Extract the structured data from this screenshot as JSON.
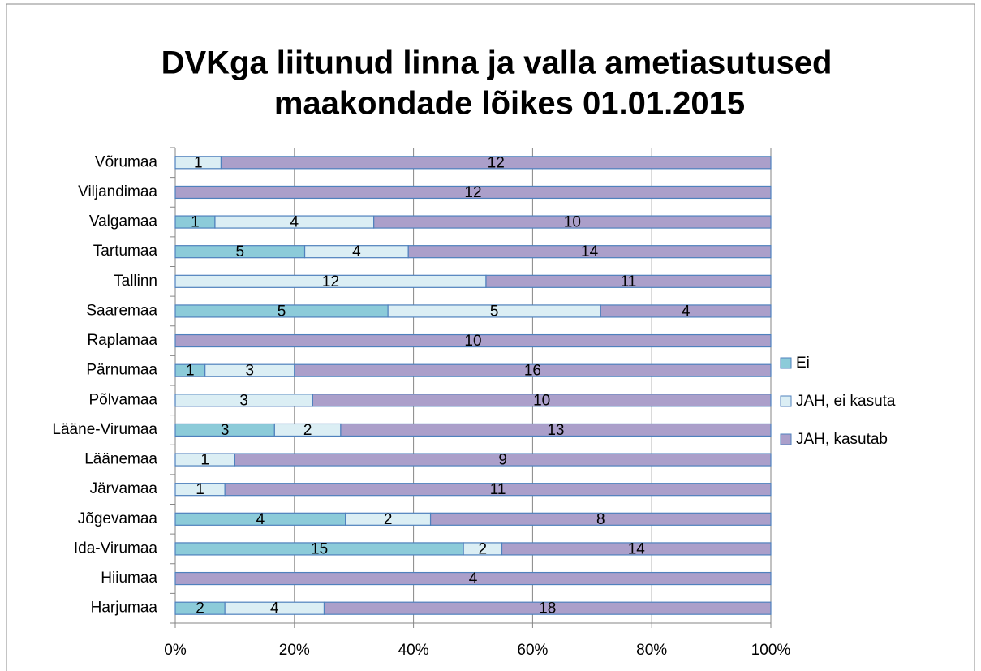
{
  "chart_data": {
    "type": "bar",
    "orientation": "horizontal",
    "stacked": "percent",
    "title": [
      "DVKga liitunud linna ja valla ametiasutused",
      "maakondade lõikes 01.01.2015"
    ],
    "categories": [
      "Harjumaa",
      "Hiiumaa",
      "Ida-Virumaa",
      "Jõgevamaa",
      "Järvamaa",
      "Läänemaa",
      "Lääne-Virumaa",
      "Põlvamaa",
      "Pärnumaa",
      "Raplamaa",
      "Saaremaa",
      "Tallinn",
      "Tartumaa",
      "Valgamaa",
      "Viljandimaa",
      "Võrumaa"
    ],
    "series": [
      {
        "name": "Ei",
        "color": "#8ccbd9",
        "values": [
          2,
          null,
          15,
          4,
          null,
          null,
          3,
          null,
          1,
          null,
          5,
          null,
          5,
          1,
          null,
          null
        ]
      },
      {
        "name": "JAH, ei kasuta",
        "color": "#dbeef4",
        "values": [
          4,
          null,
          2,
          2,
          1,
          1,
          2,
          3,
          3,
          null,
          5,
          12,
          4,
          4,
          null,
          1
        ]
      },
      {
        "name": "JAH, kasutab",
        "color": "#ab9fca",
        "values": [
          18,
          4,
          14,
          8,
          11,
          9,
          13,
          10,
          16,
          10,
          4,
          11,
          14,
          10,
          12,
          12
        ]
      }
    ],
    "xlim": [
      0,
      100
    ],
    "xticks": [
      {
        "value": 0,
        "label": "0%"
      },
      {
        "value": 20,
        "label": "20%"
      },
      {
        "value": 40,
        "label": "40%"
      },
      {
        "value": 60,
        "label": "60%"
      },
      {
        "value": 80,
        "label": "80%"
      },
      {
        "value": 100,
        "label": "100%"
      }
    ],
    "grid": true,
    "legend": "right"
  }
}
